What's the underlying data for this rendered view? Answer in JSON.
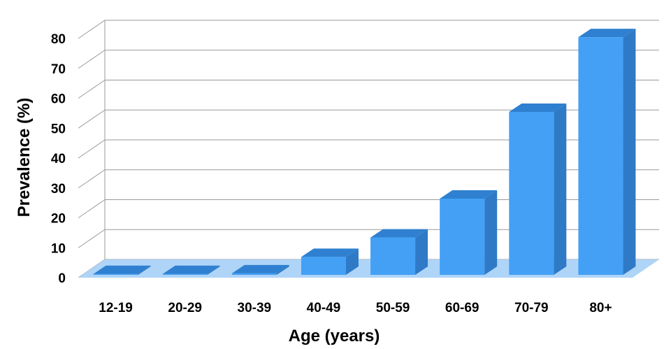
{
  "chart_data": {
    "type": "bar",
    "title": "",
    "xlabel": "Age (years)",
    "ylabel": "Prevalence (%)",
    "categories": [
      "12-19",
      "20-29",
      "30-39",
      "40-49",
      "50-59",
      "60-69",
      "70-79",
      "80+"
    ],
    "values": [
      0.3,
      0.3,
      0.5,
      6,
      12.5,
      25.5,
      54.5,
      79.5
    ],
    "ylim": [
      0,
      80
    ],
    "yticks": [
      "0",
      "10",
      "20",
      "30",
      "40",
      "50",
      "60",
      "70",
      "80"
    ],
    "grid": true,
    "style": "3d",
    "colors": {
      "bar_front": "#43a0f5",
      "bar_top": "#2f80d0",
      "bar_side": "#2e7ac6",
      "floor": "#aed4f8",
      "grid": "#9a9a9a"
    }
  }
}
